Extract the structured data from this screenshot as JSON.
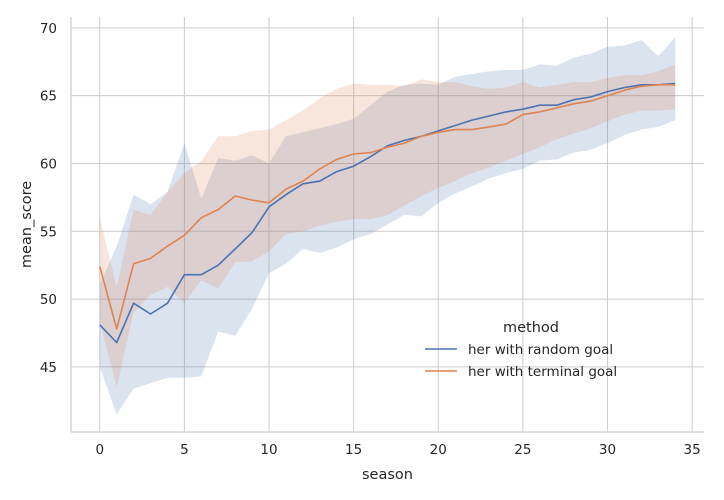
{
  "chart_data": {
    "type": "line",
    "xlabel": "season",
    "ylabel": "mean_score",
    "xlim": [
      -1.7,
      35.7
    ],
    "ylim": [
      40.2,
      70.8
    ],
    "xticks": [
      0,
      5,
      10,
      15,
      20,
      25,
      30,
      35
    ],
    "yticks": [
      45,
      50,
      55,
      60,
      65,
      70
    ],
    "grid": true,
    "legend": {
      "title": "method",
      "placement": "lower-right"
    },
    "x": [
      0,
      1,
      2,
      3,
      4,
      5,
      6,
      7,
      8,
      9,
      10,
      11,
      12,
      13,
      14,
      15,
      16,
      17,
      18,
      19,
      20,
      21,
      22,
      23,
      24,
      25,
      26,
      27,
      28,
      29,
      30,
      31,
      32,
      33,
      34
    ],
    "series": [
      {
        "name": "her with random goal",
        "color": "#4c72b0",
        "values": [
          48.1,
          46.8,
          49.7,
          48.9,
          49.7,
          51.8,
          51.8,
          52.5,
          53.7,
          54.9,
          56.8,
          57.7,
          58.5,
          58.7,
          59.4,
          59.8,
          60.5,
          61.3,
          61.7,
          62.0,
          62.4,
          62.8,
          63.2,
          63.5,
          63.8,
          64.0,
          64.3,
          64.3,
          64.7,
          64.9,
          65.3,
          65.6,
          65.8,
          65.8,
          65.9
        ],
        "ci_low": [
          45.0,
          41.5,
          43.4,
          43.8,
          44.2,
          44.2,
          44.3,
          47.6,
          47.3,
          49.3,
          51.9,
          52.6,
          53.7,
          53.4,
          53.8,
          54.4,
          54.8,
          55.5,
          56.2,
          56.1,
          57.1,
          57.8,
          58.3,
          58.9,
          59.3,
          59.6,
          60.2,
          60.3,
          60.8,
          61.0,
          61.5,
          62.1,
          62.5,
          62.7,
          63.2
        ],
        "ci_high": [
          51.1,
          53.9,
          57.7,
          57.0,
          57.9,
          61.5,
          57.4,
          60.4,
          60.2,
          60.6,
          60.0,
          62.0,
          62.3,
          62.6,
          62.9,
          63.3,
          64.3,
          65.3,
          65.8,
          65.9,
          65.8,
          66.4,
          66.6,
          66.8,
          66.9,
          66.9,
          67.3,
          67.2,
          67.8,
          68.1,
          68.6,
          68.7,
          69.1,
          67.9,
          69.3
        ]
      },
      {
        "name": "her with terminal goal",
        "color": "#dd8452",
        "values": [
          52.4,
          47.8,
          52.6,
          53.0,
          53.9,
          54.7,
          56.0,
          56.6,
          57.6,
          57.3,
          57.1,
          58.1,
          58.7,
          59.6,
          60.3,
          60.7,
          60.8,
          61.2,
          61.5,
          62.0,
          62.3,
          62.5,
          62.5,
          62.7,
          62.9,
          63.6,
          63.8,
          64.1,
          64.4,
          64.6,
          65.0,
          65.4,
          65.7,
          65.8,
          65.8
        ],
        "ci_low": [
          48.3,
          43.5,
          49.0,
          50.3,
          50.9,
          49.7,
          51.4,
          50.8,
          52.7,
          52.8,
          53.5,
          54.8,
          55.0,
          55.4,
          55.7,
          55.9,
          55.9,
          56.2,
          56.9,
          57.6,
          58.2,
          58.7,
          59.3,
          59.7,
          60.2,
          60.7,
          61.2,
          61.8,
          62.2,
          62.6,
          63.1,
          63.6,
          63.9,
          63.9,
          64.0
        ],
        "ci_high": [
          56.0,
          50.9,
          56.6,
          56.2,
          57.9,
          59.3,
          60.2,
          62.0,
          62.0,
          62.4,
          62.5,
          63.2,
          63.9,
          64.8,
          65.5,
          65.9,
          65.8,
          65.8,
          65.7,
          66.2,
          66.0,
          66.0,
          65.7,
          65.5,
          65.6,
          66.0,
          65.6,
          65.8,
          66.0,
          66.0,
          66.3,
          66.5,
          66.5,
          66.8,
          67.3
        ]
      }
    ]
  }
}
